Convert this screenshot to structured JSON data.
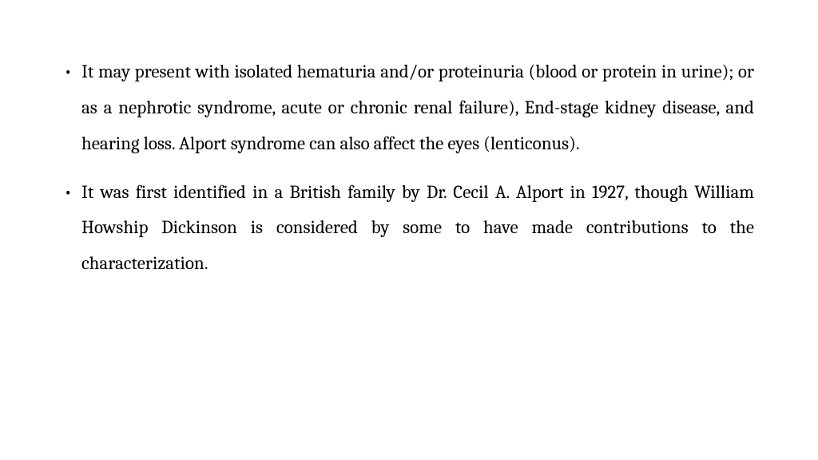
{
  "slide": {
    "background_color": "#ffffff",
    "text_color": "#000000",
    "font_family": "Cambria, Georgia, serif",
    "font_size_pt": 17,
    "line_height": 1.95,
    "text_align": "justify",
    "bullets": [
      {
        "text": "It may present with isolated hematuria and/or proteinuria (blood or protein in urine); or as a nephrotic syndrome, acute or chronic renal failure), End-stage kidney disease, and hearing loss. Alport syndrome can also affect the eyes (lenticonus)."
      },
      {
        "text": "It was first identified in a British family by Dr. Cecil A. Alport in 1927, though William Howship Dickinson is considered by some to have made contributions to the characterization."
      }
    ]
  }
}
